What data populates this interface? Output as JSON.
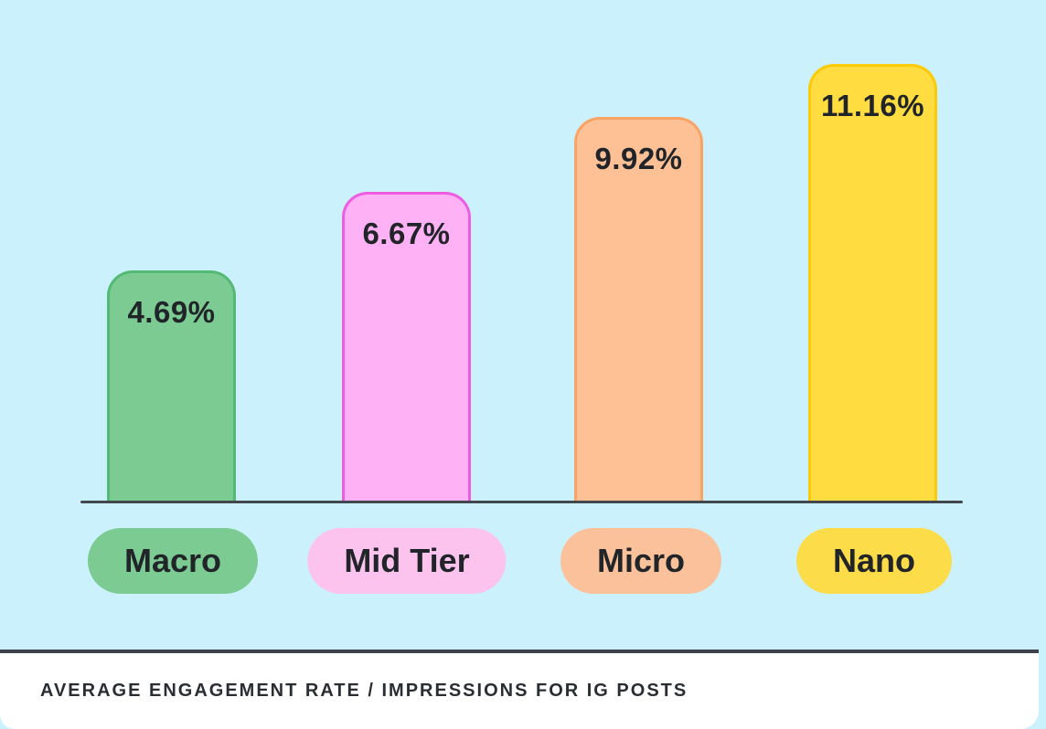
{
  "colors": {
    "background": "#cbf2fc",
    "axis": "#41474c",
    "label_text": "#212529",
    "footer_background": "#ffffff",
    "footer_border": "#3d4349",
    "macro_fill": "#7ccb93",
    "macro_border": "#54b974",
    "midtier_fill": "#feb1f4",
    "midtier_border": "#ee5ce2",
    "midtier_pill": "#fcc3ee",
    "micro_fill": "#fec196",
    "micro_border": "#fba365",
    "micro_pill": "#fbc19b",
    "nano_fill": "#ffdc3f",
    "nano_border": "#fcca06",
    "nano_pill": "#fcdc49"
  },
  "chart_data": {
    "type": "bar",
    "title": "AVERAGE ENGAGEMENT RATE / IMPRESSIONS FOR IG POSTS",
    "categories": [
      "Macro",
      "Mid Tier",
      "Micro",
      "Nano"
    ],
    "values": [
      4.69,
      6.67,
      9.92,
      11.16
    ],
    "value_labels": [
      "4.69%",
      "6.67%",
      "9.92%",
      "11.16%"
    ],
    "xlabel": "",
    "ylabel": "",
    "grid": false,
    "legend_position": "none",
    "value_label_position": "inside-top",
    "category_label_style": "pill"
  },
  "bars": [
    {
      "label": "Macro",
      "value_label": "4.69%"
    },
    {
      "label": "Mid Tier",
      "value_label": "6.67%"
    },
    {
      "label": "Micro",
      "value_label": "9.92%"
    },
    {
      "label": "Nano",
      "value_label": "11.16%"
    }
  ],
  "footer": {
    "caption": "AVERAGE ENGAGEMENT RATE / IMPRESSIONS FOR IG POSTS"
  }
}
